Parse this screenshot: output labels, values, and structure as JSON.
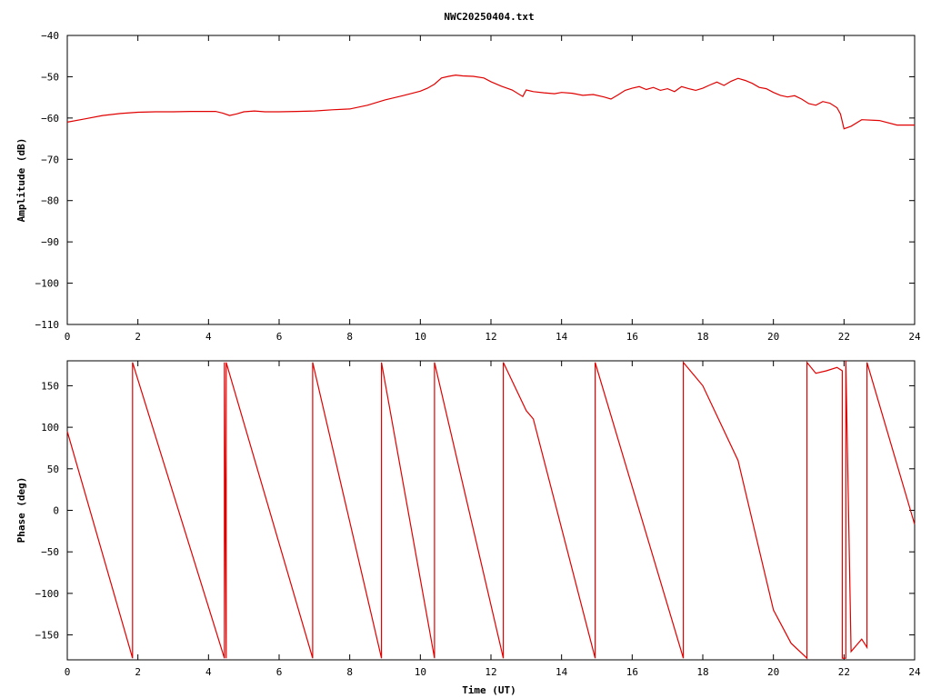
{
  "title": "NWC20250404.txt",
  "chart_data": [
    {
      "type": "line",
      "xlabel": "",
      "ylabel": "Amplitude (dB)",
      "xlim": [
        0,
        24
      ],
      "ylim": [
        -110,
        -40
      ],
      "xticks": [
        "0",
        "2",
        "4",
        "6",
        "8",
        "10",
        "12",
        "14",
        "16",
        "18",
        "20",
        "22",
        "24"
      ],
      "yticks": [
        "-40",
        "-50",
        "-60",
        "-70",
        "-80",
        "-90",
        "-100",
        "-110"
      ],
      "line_color": "#e00000",
      "series": [
        {
          "x": [
            0,
            0.5,
            1,
            1.5,
            2,
            2.5,
            3,
            3.5,
            4,
            4.2,
            4.4,
            4.6,
            4.8,
            5,
            5.3,
            5.6,
            6,
            6.5,
            7,
            7.5,
            8,
            8.5,
            9,
            9.5,
            10,
            10.2,
            10.4,
            10.6,
            10.8,
            11,
            11.2,
            11.5,
            11.8,
            12,
            12.3,
            12.6,
            12.9,
            13,
            13.2,
            13.5,
            13.8,
            14,
            14.3,
            14.6,
            14.9,
            15.2,
            15.4,
            15.6,
            15.8,
            16,
            16.2,
            16.4,
            16.6,
            16.8,
            17,
            17.2,
            17.4,
            17.6,
            17.8,
            18,
            18.2,
            18.4,
            18.6,
            18.8,
            19,
            19.2,
            19.4,
            19.6,
            19.8,
            20,
            20.2,
            20.4,
            20.6,
            20.8,
            21,
            21.2,
            21.4,
            21.6,
            21.8,
            21.9,
            22,
            22.2,
            22.5,
            23,
            23.5,
            24
          ],
          "y": [
            -61,
            -60.2,
            -59.4,
            -58.9,
            -58.6,
            -58.5,
            -58.5,
            -58.4,
            -58.4,
            -58.4,
            -58.8,
            -59.4,
            -59,
            -58.5,
            -58.3,
            -58.5,
            -58.5,
            -58.4,
            -58.3,
            -58,
            -57.8,
            -56.9,
            -55.6,
            -54.6,
            -53.5,
            -52.8,
            -51.8,
            -50.3,
            -49.9,
            -49.6,
            -49.8,
            -49.9,
            -50.3,
            -51.2,
            -52.3,
            -53.2,
            -54.8,
            -53.2,
            -53.6,
            -53.9,
            -54.1,
            -53.8,
            -54.0,
            -54.5,
            -54.3,
            -54.9,
            -55.4,
            -54.4,
            -53.3,
            -52.8,
            -52.4,
            -53.1,
            -52.6,
            -53.3,
            -52.9,
            -53.6,
            -52.4,
            -52.9,
            -53.3,
            -52.8,
            -52.0,
            -51.3,
            -52.1,
            -51.1,
            -50.4,
            -50.9,
            -51.6,
            -52.6,
            -52.9,
            -53.8,
            -54.5,
            -54.9,
            -54.6,
            -55.4,
            -56.5,
            -56.9,
            -56.0,
            -56.4,
            -57.5,
            -59.0,
            -62.6,
            -62.0,
            -60.4,
            -60.6,
            -61.7,
            -61.7
          ]
        }
      ]
    },
    {
      "type": "line",
      "xlabel": "Time (UT)",
      "ylabel": "Phase (deg)",
      "xlim": [
        0,
        24
      ],
      "ylim": [
        -180,
        180
      ],
      "xticks": [
        "0",
        "2",
        "4",
        "6",
        "8",
        "10",
        "12",
        "14",
        "16",
        "18",
        "20",
        "22",
        "24"
      ],
      "yticks": [
        "150",
        "100",
        "50",
        "0",
        "-50",
        "-100",
        "-150"
      ],
      "line_color": "#e00000",
      "series": [
        {
          "x": [
            0,
            1.85,
            1.85,
            4.45,
            4.45,
            4.5,
            4.5,
            6.95,
            6.95,
            8.9,
            8.9,
            10.4,
            10.4,
            12.35,
            12.35,
            13.0,
            13.2,
            14.95,
            14.95,
            17.45,
            17.45,
            18.0,
            19.0,
            20.0,
            20.5,
            20.95,
            20.95,
            21.2,
            21.5,
            21.8,
            21.95,
            21.95,
            22.05,
            22.05,
            22.2,
            22.5,
            22.65,
            22.65,
            24.0
          ],
          "y": [
            95,
            -178,
            178,
            -178,
            178,
            -178,
            178,
            -178,
            178,
            -178,
            178,
            -178,
            178,
            -178,
            178,
            120,
            110,
            -178,
            178,
            -178,
            178,
            150,
            60,
            -120,
            -160,
            -178,
            178,
            165,
            168,
            172,
            168,
            -178,
            -178,
            180,
            -170,
            -155,
            -165,
            178,
            -17
          ]
        }
      ]
    }
  ]
}
